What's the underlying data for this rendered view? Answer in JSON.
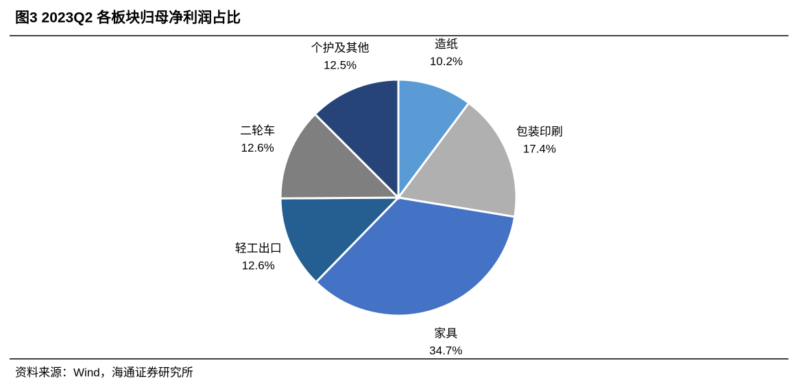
{
  "chart_data": {
    "type": "pie",
    "title": "图3  2023Q2 各板块归母净利润占比",
    "source": "资料来源：Wind，海通证券研究所",
    "categories": [
      "造纸",
      "包装印刷",
      "家具",
      "轻工出口",
      "二轮车",
      "个护及其他"
    ],
    "values": [
      10.2,
      17.4,
      34.7,
      12.6,
      12.6,
      12.5
    ],
    "value_labels": [
      "10.2%",
      "17.4%",
      "34.7%",
      "12.6%",
      "12.6%",
      "12.5%"
    ],
    "colors": [
      "#5b9bd5",
      "#b0b0b0",
      "#4472c4",
      "#255e91",
      "#7f7f7f",
      "#264478"
    ]
  }
}
